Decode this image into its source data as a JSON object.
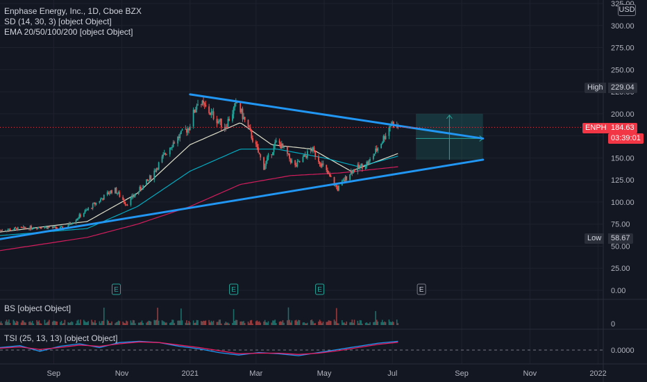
{
  "header": {
    "title": "Enphase Energy, Inc., 1D, Cboe BZX",
    "indicator_sd": "SD (14, 30, 3) [object Object]",
    "indicator_ema": "EMA 20/50/100/200 [object Object]",
    "indicator_bs": "BS [object Object]",
    "indicator_tsi": "TSI (25, 13, 13) [object Object]",
    "currency": "USD"
  },
  "price_tags": {
    "high_label": "High",
    "high_value": "229.04",
    "low_label": "Low",
    "low_value": "58.67",
    "symbol": "ENPH",
    "last_price": "184.63",
    "countdown": "03:39:01"
  },
  "colors": {
    "background": "#131722",
    "up": "#26a69a",
    "down": "#ef5350",
    "trendline": "#2196f3",
    "ema20": "#f5f5dc",
    "ema50": "#00bcd4",
    "ema100": "#e91e63",
    "grid": "#1e222d"
  },
  "chart_data": [
    {
      "type": "candlestick",
      "title": "Enphase Energy, Inc., 1D, Cboe BZX",
      "ylim": [
        0,
        325
      ],
      "y_ticks": [
        "325.00",
        "300.00",
        "275.00",
        "250.00",
        "225.00",
        "200.00",
        "175.00",
        "150.00",
        "125.00",
        "100.00",
        "75.00",
        "50.00",
        "25.00",
        "0.00"
      ],
      "x_ticks": [
        "Sep",
        "Nov",
        "2021",
        "Mar",
        "May",
        "Jul",
        "Sep",
        "Nov",
        "2022"
      ],
      "last_price": 184.63,
      "high": 229.04,
      "low": 58.67,
      "earnings_markers": [
        "E",
        "E",
        "E",
        "E"
      ],
      "price_anchors": [
        {
          "date": "2020-07-15",
          "price": 68
        },
        {
          "date": "2020-08-20",
          "price": 72
        },
        {
          "date": "2020-09-10",
          "price": 70
        },
        {
          "date": "2020-10-05",
          "price": 95
        },
        {
          "date": "2020-10-25",
          "price": 115
        },
        {
          "date": "2020-11-05",
          "price": 98
        },
        {
          "date": "2020-11-25",
          "price": 125
        },
        {
          "date": "2020-12-15",
          "price": 165
        },
        {
          "date": "2020-12-31",
          "price": 185
        },
        {
          "date": "2021-01-08",
          "price": 215
        },
        {
          "date": "2021-01-20",
          "price": 200
        },
        {
          "date": "2021-02-01",
          "price": 185
        },
        {
          "date": "2021-02-12",
          "price": 212
        },
        {
          "date": "2021-02-25",
          "price": 175
        },
        {
          "date": "2021-03-08",
          "price": 140
        },
        {
          "date": "2021-03-20",
          "price": 170
        },
        {
          "date": "2021-04-05",
          "price": 140
        },
        {
          "date": "2021-04-20",
          "price": 160
        },
        {
          "date": "2021-05-05",
          "price": 130
        },
        {
          "date": "2021-05-13",
          "price": 115
        },
        {
          "date": "2021-05-25",
          "price": 135
        },
        {
          "date": "2021-06-10",
          "price": 145
        },
        {
          "date": "2021-06-22",
          "price": 170
        },
        {
          "date": "2021-06-30",
          "price": 190
        },
        {
          "date": "2021-07-06",
          "price": 184.63
        }
      ],
      "ema_series": [
        {
          "values": [
            {
              "date": "2020-07-15",
              "price": 66
            },
            {
              "date": "2020-10-01",
              "price": 78
            },
            {
              "date": "2020-11-15",
              "price": 110
            },
            {
              "date": "2021-01-01",
              "price": 165
            },
            {
              "date": "2021-02-15",
              "price": 190
            },
            {
              "date": "2021-03-15",
              "price": 165
            },
            {
              "date": "2021-04-20",
              "price": 160
            },
            {
              "date": "2021-05-25",
              "price": 135
            },
            {
              "date": "2021-07-06",
              "price": 155
            }
          ]
        },
        {
          "values": [
            {
              "date": "2020-07-15",
              "price": 62
            },
            {
              "date": "2020-10-01",
              "price": 70
            },
            {
              "date": "2020-11-15",
              "price": 95
            },
            {
              "date": "2021-01-01",
              "price": 135
            },
            {
              "date": "2021-02-15",
              "price": 160
            },
            {
              "date": "2021-03-20",
              "price": 160
            },
            {
              "date": "2021-05-01",
              "price": 150
            },
            {
              "date": "2021-06-01",
              "price": 140
            },
            {
              "date": "2021-07-06",
              "price": 152
            }
          ]
        },
        {
          "values": [
            {
              "date": "2020-07-15",
              "price": 45
            },
            {
              "date": "2020-10-01",
              "price": 60
            },
            {
              "date": "2020-11-15",
              "price": 75
            },
            {
              "date": "2021-01-01",
              "price": 95
            },
            {
              "date": "2021-02-15",
              "price": 120
            },
            {
              "date": "2021-04-01",
              "price": 130
            },
            {
              "date": "2021-05-15",
              "price": 133
            },
            {
              "date": "2021-07-06",
              "price": 140
            }
          ]
        }
      ],
      "trendlines": [
        {
          "from": {
            "date": "2021-01-01",
            "price": 222
          },
          "to": {
            "date": "2021-09-20",
            "price": 172
          }
        },
        {
          "from": {
            "date": "2020-07-15",
            "price": 58
          },
          "to": {
            "date": "2021-09-20",
            "price": 148
          }
        }
      ],
      "position_box": {
        "start": "2021-07-22",
        "end": "2021-09-20",
        "target_top": 200,
        "entry": 172,
        "stop": 148
      }
    },
    {
      "type": "bar",
      "title": "BS [object Object]",
      "y_ticks": [
        "0"
      ]
    },
    {
      "type": "line",
      "title": "TSI (25, 13, 13) [object Object]",
      "y_ticks": [
        "0.0000"
      ],
      "series": [
        {
          "values": [
            0.2,
            0.35,
            -0.1,
            0.3,
            0.5,
            0.2,
            0.6,
            0.7,
            0.6,
            0.3,
            0.1,
            -0.2,
            -0.4,
            -0.2,
            -0.3,
            -0.45,
            -0.2,
            0.05,
            0.3,
            0.55,
            0.7
          ]
        },
        {
          "values": [
            0.15,
            0.25,
            0.05,
            0.2,
            0.4,
            0.3,
            0.5,
            0.65,
            0.6,
            0.4,
            0.2,
            -0.05,
            -0.3,
            -0.25,
            -0.25,
            -0.35,
            -0.25,
            -0.05,
            0.2,
            0.45,
            0.62
          ]
        }
      ]
    }
  ]
}
